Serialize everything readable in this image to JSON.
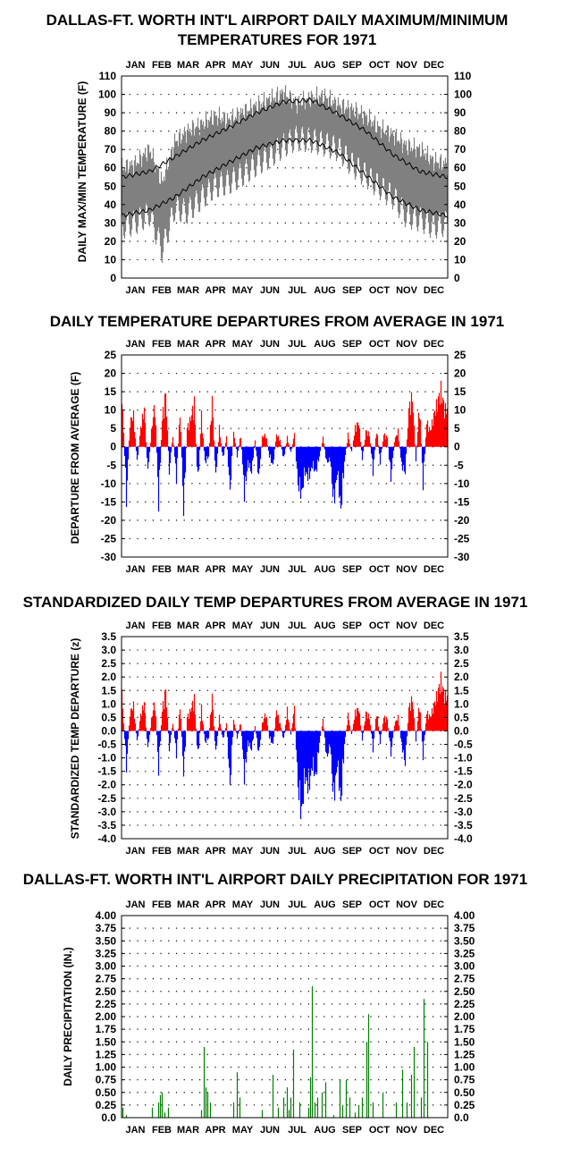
{
  "months": [
    "JAN",
    "FEB",
    "MAR",
    "APR",
    "MAY",
    "JUN",
    "JUL",
    "AUG",
    "SEP",
    "OCT",
    "NOV",
    "DEC"
  ],
  "colors": {
    "above": "#ff0000",
    "below": "#0000ff",
    "range": "#808080",
    "precip": "#008000",
    "normal": "#000000"
  },
  "chart_data": [
    {
      "type": "line",
      "title_line1": "DALLAS-FT. WORTH INT'L AIRPORT DAILY MAXIMUM/MINIMUM",
      "title_line2": "TEMPERATURES FOR 1971",
      "ylabel": "DAILY MAX/MIN TEMPERATURE (F)",
      "ylim": [
        0,
        110
      ],
      "yticks": [
        "0",
        "10",
        "20",
        "30",
        "40",
        "50",
        "60",
        "70",
        "80",
        "90",
        "100",
        "110"
      ],
      "x_axis": "day of year (Jan 1 - Dec 31, 1971)",
      "grid": true,
      "series": [
        {
          "style": "gray range bars",
          "days": [
            1,
            15,
            32,
            46,
            60,
            74,
            91,
            105,
            121,
            135,
            152,
            166,
            182,
            196,
            213,
            227,
            244,
            258,
            274,
            288,
            305,
            319,
            335,
            349,
            365
          ],
          "max": [
            60,
            62,
            70,
            52,
            74,
            80,
            84,
            88,
            86,
            90,
            94,
            97,
            101,
            95,
            98,
            99,
            94,
            92,
            88,
            82,
            78,
            72,
            70,
            64,
            62
          ],
          "min": [
            28,
            30,
            35,
            15,
            38,
            36,
            44,
            50,
            52,
            56,
            62,
            66,
            72,
            76,
            75,
            73,
            70,
            62,
            56,
            50,
            44,
            34,
            32,
            28,
            30
          ]
        },
        {
          "name": "normal max",
          "days": [
            1,
            32,
            60,
            91,
            121,
            152,
            182,
            213,
            244,
            274,
            305,
            335,
            365
          ],
          "values": [
            55,
            58,
            66,
            75,
            82,
            90,
            96,
            97,
            89,
            80,
            67,
            58,
            55
          ]
        },
        {
          "name": "normal min",
          "days": [
            1,
            32,
            60,
            91,
            121,
            152,
            182,
            213,
            244,
            274,
            305,
            335,
            365
          ],
          "values": [
            34,
            37,
            44,
            55,
            63,
            71,
            75,
            75,
            68,
            56,
            44,
            37,
            34
          ]
        }
      ]
    },
    {
      "type": "bar",
      "title": "DAILY TEMPERATURE DEPARTURES FROM AVERAGE IN 1971",
      "ylabel": "DEPARTURE FROM AVERAGE (F)",
      "ylim": [
        -30,
        25
      ],
      "yticks": [
        "-30",
        "-25",
        "-20",
        "-15",
        "-10",
        "-5",
        "0",
        "5",
        "10",
        "15",
        "20",
        "25"
      ],
      "x_axis": "day of year",
      "grid": true,
      "days": [
        2,
        6,
        10,
        14,
        18,
        22,
        26,
        30,
        34,
        38,
        42,
        46,
        50,
        54,
        58,
        62,
        66,
        70,
        74,
        78,
        82,
        86,
        90,
        94,
        98,
        102,
        106,
        110,
        114,
        118,
        122,
        126,
        130,
        134,
        138,
        142,
        146,
        150,
        154,
        158,
        162,
        166,
        170,
        174,
        178,
        182,
        186,
        190,
        194,
        198,
        202,
        206,
        210,
        214,
        218,
        222,
        226,
        230,
        234,
        238,
        242,
        246,
        250,
        254,
        258,
        262,
        266,
        270,
        274,
        278,
        282,
        286,
        290,
        294,
        298,
        302,
        306,
        310,
        314,
        318,
        322,
        326,
        330,
        334,
        338,
        342,
        346,
        350,
        354,
        358,
        362
      ],
      "values": [
        12,
        -17,
        8,
        10,
        -5,
        6,
        12,
        -8,
        5,
        14,
        -18,
        9,
        17,
        -8,
        4,
        -10,
        12,
        -20,
        6,
        9,
        14,
        -12,
        10,
        -5,
        -3,
        15,
        -10,
        6,
        -4,
        3,
        -14,
        5,
        -3,
        4,
        -15,
        -5,
        -8,
        2,
        -10,
        3,
        4,
        -3,
        -6,
        4,
        2,
        -4,
        3,
        -2,
        4,
        -12,
        -15,
        -8,
        -10,
        -6,
        -8,
        -3,
        3,
        -5,
        -4,
        -18,
        -8,
        -20,
        -5,
        4,
        -2,
        6,
        8,
        -4,
        5,
        4,
        -8,
        6,
        -5,
        4,
        3,
        -10,
        2,
        5,
        -6,
        -8,
        12,
        16,
        -4,
        14,
        -12,
        8,
        5,
        10,
        14,
        18,
        12
      ],
      "series": [
        {
          "name": "above average"
        },
        {
          "name": "below average"
        }
      ]
    },
    {
      "type": "bar",
      "title": "STANDARDIZED DAILY TEMP DEPARTURES FROM AVERAGE IN 1971",
      "ylabel": "STANDARDIZED TEMP DEPARTURE (z)",
      "ylim": [
        -4.0,
        3.5
      ],
      "yticks": [
        "-4.0",
        "-3.5",
        "-3.0",
        "-2.5",
        "-2.0",
        "-1.5",
        "-1.0",
        "-0.5",
        "0.0",
        "0.5",
        "1.0",
        "1.5",
        "2.0",
        "2.5",
        "3.0",
        "3.5"
      ],
      "x_axis": "day of year",
      "grid": true,
      "days": [
        2,
        6,
        10,
        14,
        18,
        22,
        26,
        30,
        34,
        38,
        42,
        46,
        50,
        54,
        58,
        62,
        66,
        70,
        74,
        78,
        82,
        86,
        90,
        94,
        98,
        102,
        106,
        110,
        114,
        118,
        122,
        126,
        130,
        134,
        138,
        142,
        146,
        150,
        154,
        158,
        162,
        166,
        170,
        174,
        178,
        182,
        186,
        190,
        194,
        198,
        202,
        206,
        210,
        214,
        218,
        222,
        226,
        230,
        234,
        238,
        242,
        246,
        250,
        254,
        258,
        262,
        266,
        270,
        274,
        278,
        282,
        286,
        290,
        294,
        298,
        302,
        306,
        310,
        314,
        318,
        322,
        326,
        330,
        334,
        338,
        342,
        346,
        350,
        354,
        358,
        362
      ],
      "values": [
        1.0,
        -1.6,
        0.8,
        1.1,
        -0.5,
        0.7,
        1.2,
        -0.8,
        0.5,
        1.3,
        -1.7,
        0.9,
        1.8,
        -0.8,
        0.4,
        -1.0,
        1.2,
        -1.8,
        0.6,
        0.9,
        1.4,
        -1.2,
        1.0,
        -0.5,
        -0.3,
        1.5,
        -1.0,
        0.6,
        -0.4,
        0.3,
        -2.4,
        0.5,
        -0.3,
        0.4,
        -2.0,
        -0.5,
        -0.8,
        0.2,
        -1.0,
        0.3,
        0.8,
        -0.3,
        -0.6,
        0.9,
        0.3,
        -0.4,
        0.9,
        -0.2,
        1.0,
        -2.4,
        -3.6,
        -2.0,
        -2.5,
        -1.5,
        -2.0,
        -0.5,
        0.5,
        -1.2,
        -0.6,
        -3.0,
        -1.4,
        -3.1,
        -0.6,
        0.7,
        -0.2,
        0.8,
        1.0,
        -0.4,
        0.8,
        0.6,
        -0.8,
        0.9,
        -0.5,
        0.6,
        0.5,
        -1.0,
        0.3,
        0.6,
        -0.6,
        -1.4,
        1.0,
        1.4,
        -0.4,
        1.3,
        -1.1,
        0.8,
        0.6,
        1.1,
        1.6,
        2.2,
        1.5
      ]
    },
    {
      "type": "bar",
      "title": "DALLAS-FT. WORTH INT'L AIRPORT DAILY PRECIPITATION FOR 1971",
      "ylabel": "DAILY PRECIPITATION (IN.)",
      "ylim": [
        0,
        4.0
      ],
      "yticks": [
        "0.0",
        "0.25",
        "0.50",
        "0.75",
        "1.00",
        "1.25",
        "1.50",
        "1.75",
        "2.00",
        "2.25",
        "2.50",
        "2.75",
        "3.00",
        "3.25",
        "3.50",
        "3.75",
        "4.00"
      ],
      "x_axis": "day of year",
      "grid": true,
      "days": [
        2,
        6,
        35,
        42,
        44,
        46,
        49,
        53,
        90,
        93,
        95,
        97,
        100,
        126,
        130,
        133,
        158,
        170,
        176,
        182,
        186,
        188,
        190,
        193,
        200,
        210,
        212,
        214,
        217,
        220,
        225,
        229,
        238,
        245,
        248,
        252,
        256,
        262,
        266,
        270,
        275,
        277,
        282,
        293,
        308,
        315,
        320,
        325,
        328,
        336,
        339,
        343
      ],
      "values": [
        0.2,
        0.05,
        0.2,
        0.3,
        0.45,
        0.5,
        0.1,
        0.2,
        0.15,
        1.4,
        0.6,
        0.5,
        0.3,
        0.3,
        0.9,
        0.4,
        0.15,
        0.85,
        0.2,
        0.4,
        0.6,
        0.15,
        0.4,
        1.35,
        0.3,
        0.2,
        0.8,
        2.6,
        0.3,
        0.4,
        0.5,
        0.7,
        0.05,
        0.75,
        0.25,
        0.75,
        0.4,
        0.1,
        0.25,
        0.4,
        1.5,
        2.05,
        0.3,
        0.5,
        0.3,
        0.95,
        0.3,
        0.85,
        1.4,
        0.4,
        2.35,
        1.5
      ]
    }
  ]
}
